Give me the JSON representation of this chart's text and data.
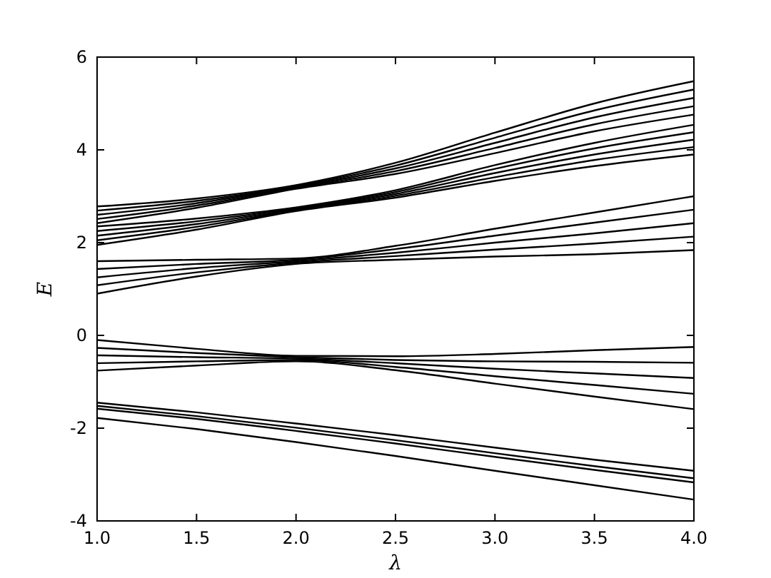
{
  "chart_data": {
    "type": "line",
    "xlabel": "λ",
    "ylabel": "E",
    "x": [
      1,
      1.5,
      2,
      2.5,
      3,
      3.5,
      4
    ],
    "xlim": [
      1,
      4
    ],
    "xticks": [
      {
        "value": 1,
        "label": "1.0"
      },
      {
        "value": 1.5,
        "label": "1.5"
      },
      {
        "value": 2,
        "label": "2.0"
      },
      {
        "value": 2.5,
        "label": "2.5"
      },
      {
        "value": 3,
        "label": "3.0"
      },
      {
        "value": 3.5,
        "label": "3.5"
      },
      {
        "value": 4,
        "label": "4.0"
      }
    ],
    "ylim": [
      -4,
      6
    ],
    "yticks": [
      -4,
      -2,
      0,
      2,
      4,
      6
    ],
    "grid": false,
    "marker": "none",
    "line_style": "solid",
    "series": [
      {
        "color": "#000000",
        "values": [
          2.78,
          2.95,
          3.24,
          3.72,
          4.37,
          5.0,
          5.48
        ]
      },
      {
        "color": "#000000",
        "values": [
          2.69,
          2.9,
          3.22,
          3.66,
          4.26,
          4.85,
          5.3
        ]
      },
      {
        "color": "#000000",
        "values": [
          2.6,
          2.85,
          3.2,
          3.6,
          4.15,
          4.7,
          5.12
        ]
      },
      {
        "color": "#000000",
        "values": [
          2.51,
          2.8,
          3.18,
          3.54,
          4.04,
          4.55,
          4.94
        ]
      },
      {
        "color": "#000000",
        "values": [
          2.42,
          2.75,
          3.16,
          3.48,
          3.93,
          4.4,
          4.76
        ]
      },
      {
        "color": "#000000",
        "values": [
          2.35,
          2.52,
          2.76,
          3.13,
          3.67,
          4.15,
          4.54
        ]
      },
      {
        "color": "#000000",
        "values": [
          2.25,
          2.46,
          2.74,
          3.09,
          3.59,
          4.03,
          4.38
        ]
      },
      {
        "color": "#000000",
        "values": [
          2.15,
          2.4,
          2.72,
          3.05,
          3.5,
          3.9,
          4.22
        ]
      },
      {
        "color": "#000000",
        "values": [
          2.05,
          2.34,
          2.7,
          3.01,
          3.41,
          3.78,
          4.06
        ]
      },
      {
        "color": "#000000",
        "values": [
          1.95,
          2.28,
          2.68,
          2.97,
          3.33,
          3.65,
          3.9
        ]
      },
      {
        "color": "#000000",
        "values": [
          1.6,
          1.63,
          1.66,
          1.93,
          2.3,
          2.65,
          3.0
        ]
      },
      {
        "color": "#000000",
        "values": [
          1.43,
          1.54,
          1.63,
          1.86,
          2.15,
          2.43,
          2.71
        ]
      },
      {
        "color": "#000000",
        "values": [
          1.25,
          1.45,
          1.6,
          1.78,
          2.0,
          2.2,
          2.42
        ]
      },
      {
        "color": "#000000",
        "values": [
          1.08,
          1.36,
          1.57,
          1.71,
          1.85,
          1.98,
          2.13
        ]
      },
      {
        "color": "#000000",
        "values": [
          0.9,
          1.27,
          1.54,
          1.63,
          1.7,
          1.75,
          1.84
        ]
      },
      {
        "color": "#000000",
        "values": [
          -0.1,
          -0.29,
          -0.44,
          -0.45,
          -0.4,
          -0.32,
          -0.25
        ]
      },
      {
        "color": "#000000",
        "values": [
          -0.27,
          -0.38,
          -0.47,
          -0.53,
          -0.56,
          -0.57,
          -0.59
        ]
      },
      {
        "color": "#000000",
        "values": [
          -0.43,
          -0.47,
          -0.5,
          -0.6,
          -0.72,
          -0.82,
          -0.92
        ]
      },
      {
        "color": "#000000",
        "values": [
          -0.6,
          -0.56,
          -0.53,
          -0.68,
          -0.88,
          -1.07,
          -1.26
        ]
      },
      {
        "color": "#000000",
        "values": [
          -0.76,
          -0.65,
          -0.56,
          -0.75,
          -1.04,
          -1.32,
          -1.59
        ]
      },
      {
        "color": "#000000",
        "values": [
          -1.45,
          -1.66,
          -1.9,
          -2.15,
          -2.42,
          -2.68,
          -2.92
        ]
      },
      {
        "color": "#000000",
        "values": [
          -1.52,
          -1.74,
          -1.99,
          -2.26,
          -2.54,
          -2.82,
          -3.08
        ]
      },
      {
        "color": "#000000",
        "values": [
          -1.58,
          -1.8,
          -2.06,
          -2.33,
          -2.62,
          -2.9,
          -3.17
        ]
      },
      {
        "color": "#000000",
        "values": [
          -1.78,
          -2.02,
          -2.3,
          -2.6,
          -2.92,
          -3.23,
          -3.54
        ]
      }
    ]
  }
}
